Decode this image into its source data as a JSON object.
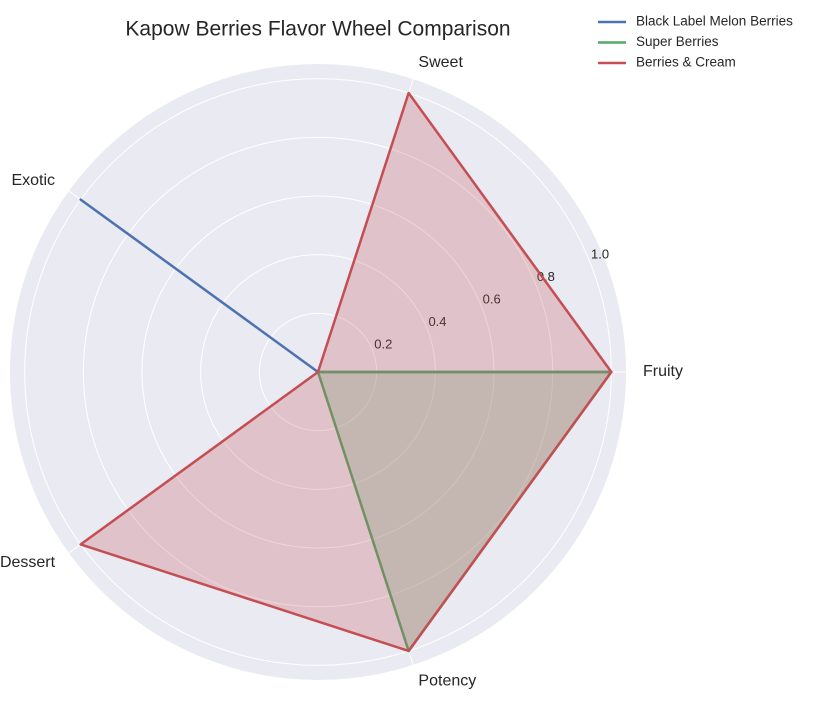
{
  "chart_data": {
    "type": "radar",
    "title": "Kapow Berries Flavor Wheel Comparison",
    "categories": [
      "Fruity",
      "Sweet",
      "Exotic",
      "Dessert",
      "Potency"
    ],
    "series": [
      {
        "name": "Black Label Melon Berries",
        "color": "#4c72b0",
        "values": [
          1,
          0,
          1,
          0,
          0
        ]
      },
      {
        "name": "Super Berries",
        "color": "#55a868",
        "values": [
          1,
          0,
          0,
          0,
          1
        ]
      },
      {
        "name": "Berries & Cream",
        "color": "#c44e52",
        "values": [
          1,
          1,
          0,
          1,
          1
        ]
      }
    ],
    "ylim": [
      0,
      1.05
    ],
    "yticks": [
      0.2,
      0.4,
      0.6,
      0.8,
      {
        "value": 1,
        "label": "1.0"
      }
    ],
    "grid": true,
    "legend": "upper right"
  }
}
